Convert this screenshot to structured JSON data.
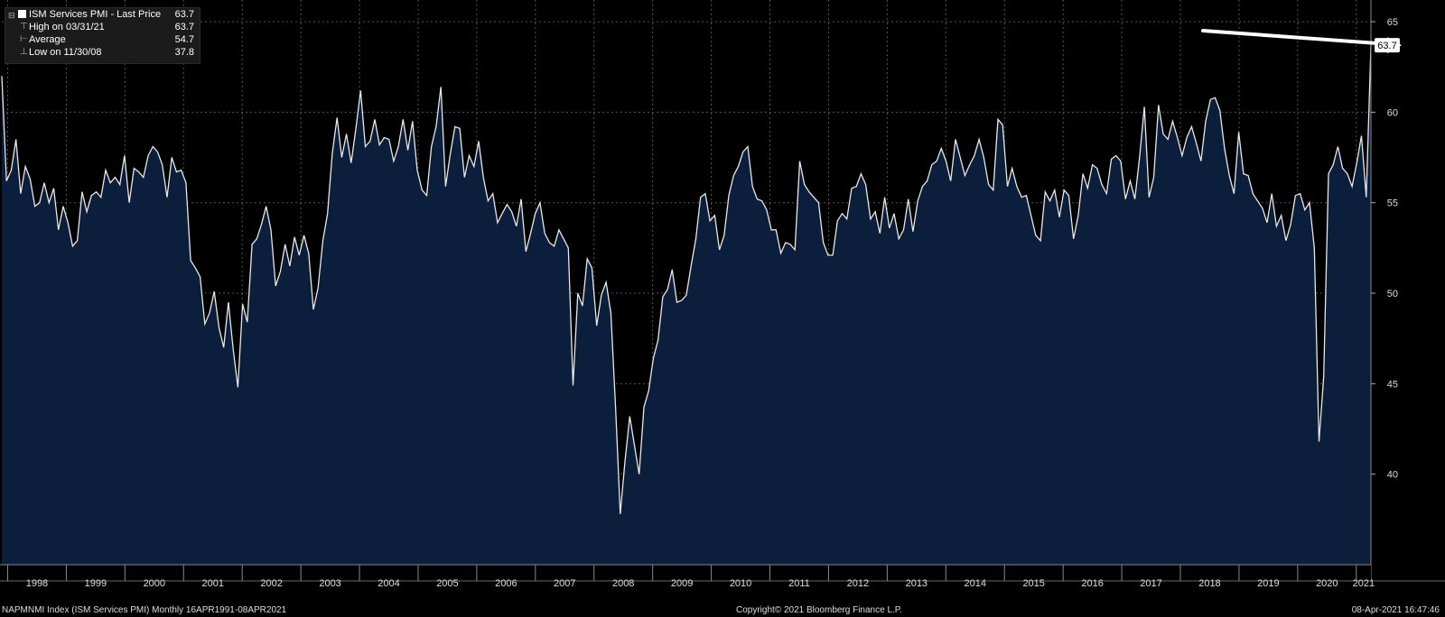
{
  "legend": {
    "title": "ISM Services PMI - Last Price",
    "title_value": "63.7",
    "high_label": "High on 03/31/21",
    "high_value": "63.7",
    "avg_label": "Average",
    "avg_value": "54.7",
    "low_label": "Low on 11/30/08",
    "low_value": "37.8"
  },
  "last_price_tag": "63.7",
  "footer": {
    "left": "NAPMNMI Index (ISM Services PMI)  Monthly 16APR1991-08APR2021",
    "copyright": "Copyright© 2021 Bloomberg Finance L.P.",
    "timestamp": "08-Apr-2021 16:47:46"
  },
  "colors": {
    "background": "#000000",
    "area_fill": "#0b1e3b",
    "line": "#e8e8e8",
    "grid": "#9a9a9a"
  },
  "chart_data": {
    "type": "area",
    "title": "ISM Services PMI",
    "ylim": [
      35,
      66
    ],
    "yticks": [
      40,
      45,
      50,
      55,
      60,
      65
    ],
    "xticks": [
      "1998",
      "1999",
      "2000",
      "2001",
      "2002",
      "2003",
      "2004",
      "2005",
      "2006",
      "2007",
      "2008",
      "2009",
      "2010",
      "2011",
      "2012",
      "2013",
      "2014",
      "2015",
      "2016",
      "2017",
      "2018",
      "2019",
      "2020",
      "2021"
    ],
    "x_start_year": 1997.9,
    "x_end_year": 2021.25,
    "grid": true,
    "series": [
      {
        "name": "ISM Services PMI",
        "values": [
          62.0,
          56.2,
          56.8,
          58.5,
          55.5,
          57.0,
          56.3,
          54.8,
          55.0,
          56.1,
          55.0,
          55.8,
          53.5,
          54.8,
          53.9,
          52.6,
          52.9,
          55.6,
          54.5,
          55.4,
          55.6,
          55.3,
          56.8,
          56.1,
          56.4,
          56.0,
          57.6,
          55.0,
          56.9,
          56.7,
          56.4,
          57.6,
          58.1,
          57.8,
          57.1,
          55.3,
          57.5,
          56.7,
          56.8,
          56.1,
          51.8,
          51.4,
          50.9,
          48.3,
          48.9,
          50.1,
          48.1,
          47.0,
          49.5,
          46.9,
          44.8,
          49.4,
          48.4,
          52.7,
          53.0,
          53.8,
          54.8,
          53.5,
          50.4,
          51.2,
          52.7,
          51.5,
          53.1,
          52.1,
          53.2,
          52.2,
          49.1,
          50.3,
          52.9,
          54.4,
          57.7,
          59.7,
          57.5,
          58.8,
          57.2,
          59.1,
          61.2,
          58.1,
          58.4,
          59.6,
          58.2,
          58.6,
          58.5,
          57.3,
          58.1,
          59.6,
          57.9,
          59.5,
          56.8,
          55.7,
          55.4,
          58.1,
          59.2,
          61.4,
          55.9,
          57.7,
          59.2,
          59.1,
          56.4,
          57.6,
          57.0,
          58.4,
          56.4,
          55.1,
          55.5,
          53.9,
          54.4,
          54.9,
          54.5,
          53.7,
          55.2,
          52.3,
          53.3,
          54.4,
          55.0,
          53.3,
          52.8,
          52.6,
          53.5,
          53.0,
          52.5,
          44.9,
          50.0,
          49.3,
          51.9,
          51.4,
          48.2,
          49.9,
          50.6,
          48.9,
          43.7,
          37.8,
          40.7,
          43.2,
          41.6,
          40.0,
          43.7,
          44.6,
          46.4,
          47.4,
          49.8,
          50.2,
          51.3,
          49.5,
          49.6,
          49.9,
          51.5,
          53.0,
          55.3,
          55.5,
          54.0,
          54.3,
          52.4,
          53.2,
          55.4,
          56.5,
          57.0,
          57.8,
          58.1,
          55.9,
          55.2,
          55.1,
          54.6,
          53.5,
          53.5,
          52.2,
          52.8,
          52.7,
          52.4,
          57.3,
          56.0,
          55.6,
          55.3,
          55.0,
          52.8,
          52.1,
          52.1,
          54.0,
          54.4,
          54.1,
          55.8,
          55.9,
          56.6,
          56.0,
          54.1,
          54.5,
          53.3,
          55.3,
          53.6,
          54.4,
          53.0,
          53.5,
          55.2,
          53.4,
          55.1,
          55.9,
          56.2,
          57.1,
          57.3,
          58.0,
          57.3,
          56.2,
          58.5,
          57.5,
          56.5,
          57.1,
          57.6,
          58.5,
          57.5,
          56.0,
          55.7,
          59.6,
          59.3,
          55.9,
          56.9,
          55.9,
          55.3,
          55.4,
          54.3,
          53.2,
          52.9,
          55.6,
          55.1,
          55.7,
          54.2,
          55.7,
          55.4,
          53.0,
          54.3,
          56.6,
          55.8,
          57.1,
          56.9,
          56.0,
          55.5,
          57.4,
          57.6,
          57.3,
          55.2,
          56.2,
          55.2,
          57.5,
          60.3,
          55.3,
          56.4,
          60.4,
          58.8,
          58.5,
          59.5,
          58.6,
          57.6,
          58.6,
          59.2,
          58.3,
          57.3,
          59.5,
          60.7,
          60.8,
          60.1,
          58.0,
          56.5,
          55.5,
          58.9,
          56.6,
          56.5,
          55.5,
          55.1,
          54.7,
          53.9,
          55.5,
          53.7,
          54.3,
          52.9,
          53.8,
          55.4,
          55.5,
          54.6,
          55.0,
          52.5,
          41.8,
          45.4,
          56.6,
          57.1,
          58.1,
          56.9,
          56.6,
          55.9,
          57.2,
          58.7,
          55.3,
          63.7
        ]
      }
    ]
  }
}
